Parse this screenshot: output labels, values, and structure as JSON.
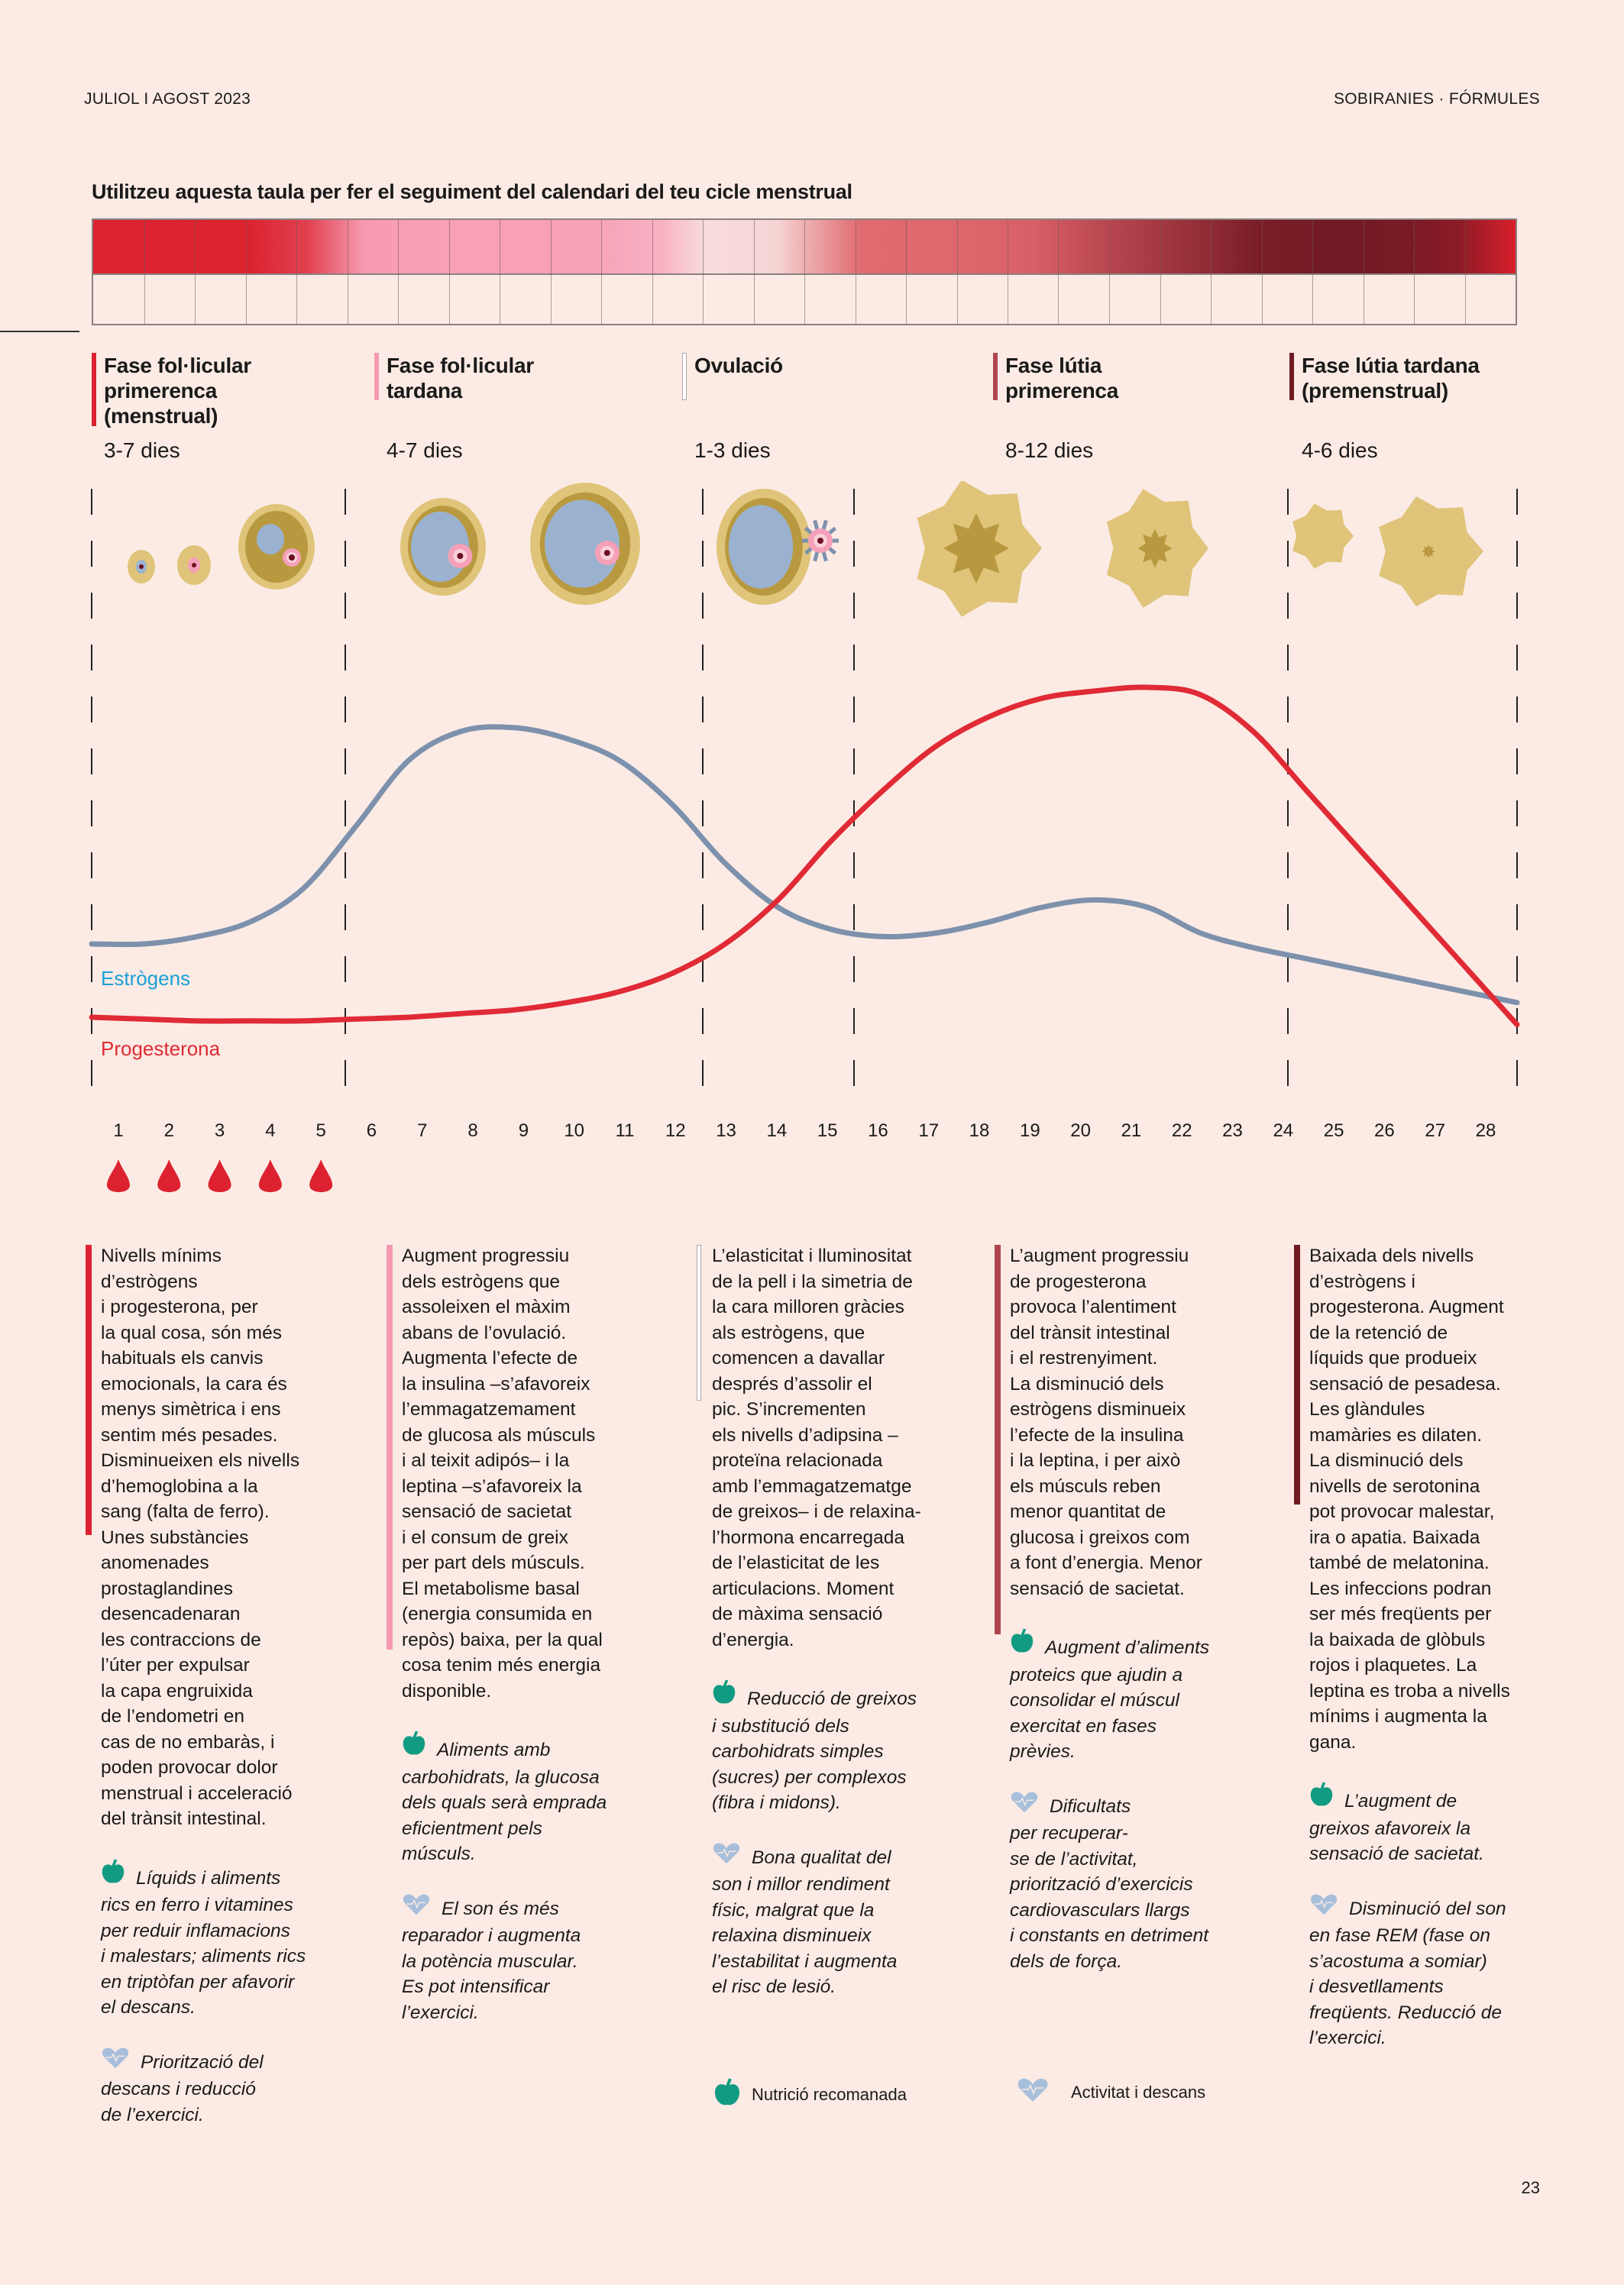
{
  "header": {
    "left": "JULIOL I AGOST 2023",
    "right": "SOBIRANIES · FÓRMULES"
  },
  "title": "Utilitzeu aquesta taula per fer el seguiment del calendari del teu cicle menstrual",
  "calendar": {
    "days": 28,
    "gradient_colors": [
      "#dc2230",
      "#f799ae",
      "#f8dcdc",
      "#de686d",
      "#701a24",
      "#d71f2b"
    ]
  },
  "phases": [
    {
      "name": "Fase fol·licular primerenca (menstrual)",
      "lines": [
        "Fase fol·licular",
        "primerenca",
        "(menstrual)"
      ],
      "days": "3-7 dies",
      "color": "#dc2230"
    },
    {
      "name": "Fase fol·licular tardana",
      "lines": [
        "Fase fol·licular",
        "tardana"
      ],
      "days": "4-7 dies",
      "color": "#f49ab0"
    },
    {
      "name": "Ovulació",
      "lines": [
        "Ovulació"
      ],
      "days": "1-3 dies",
      "color": "#ffffff"
    },
    {
      "name": "Fase lútia primerenca",
      "lines": [
        "Fase lútia",
        "primerenca"
      ],
      "days": "8-12 dies",
      "color": "#b04550"
    },
    {
      "name": "Fase lútia tardana (premenstrual)",
      "lines": [
        "Fase lútia tardana",
        "(premenstrual)"
      ],
      "days": "4-6 dies",
      "color": "#701a24"
    }
  ],
  "follicle_icons": [
    "follicle-primordial",
    "follicle-primary",
    "follicle-secondary",
    "follicle-antral",
    "follicle-graafian",
    "follicle-ovulating",
    "corpus-luteum-large",
    "corpus-luteum-medium",
    "corpus-luteum-small",
    "corpus-albicans"
  ],
  "chart_data": {
    "type": "line",
    "title": "",
    "xlabel": "",
    "ylabel": "",
    "x": [
      1,
      2,
      3,
      4,
      5,
      6,
      7,
      8,
      9,
      10,
      11,
      12,
      13,
      14,
      15,
      16,
      17,
      18,
      19,
      20,
      21,
      22,
      23,
      24,
      25,
      26,
      27,
      28
    ],
    "xlim": [
      1,
      28
    ],
    "ylim": [
      0,
      100
    ],
    "grid": false,
    "legend": "left",
    "series": [
      {
        "name": "Estrògens",
        "color": "#7d91ad",
        "label_color": "#1aa0d8",
        "values": [
          30,
          30,
          32,
          36,
          45,
          62,
          80,
          88,
          89,
          86,
          80,
          68,
          52,
          40,
          34,
          32,
          33,
          36,
          40,
          42,
          40,
          33,
          29,
          26,
          23,
          20,
          17,
          14
        ]
      },
      {
        "name": "Progesterona",
        "color": "#e02a35",
        "label_color": "#e02a35",
        "values": [
          10,
          9.5,
          9,
          9,
          9,
          9.5,
          10,
          11,
          12,
          14,
          17,
          22,
          30,
          42,
          58,
          72,
          84,
          92,
          97,
          99,
          100,
          98,
          88,
          72,
          56,
          40,
          24,
          8
        ]
      }
    ],
    "menstruation_days": [
      1,
      2,
      3,
      4,
      5
    ],
    "phase_boundaries_after_day": [
      5.5,
      12.5,
      15.5,
      23.5
    ]
  },
  "columns": [
    {
      "body": [
        "Nivells mínims",
        "d’estrògens",
        "i progesterona, per",
        "la qual cosa, són més",
        "habituals els canvis",
        "emocionals, la cara és",
        "menys simètrica i ens",
        "sentim més pesades.",
        "Disminueixen els nivells",
        "d’hemoglobina a la",
        "sang (falta de ferro).",
        "Unes substàncies",
        "anomenades",
        "prostaglandines",
        "desencadenaran",
        "les contraccions de",
        "l’úter per expulsar",
        "la capa engruixida",
        "de l’endometri en",
        "cas de no embaràs, i",
        "poden provocar dolor",
        "menstrual i acceleració",
        "del trànsit intestinal."
      ],
      "nutrition": [
        "Líquids i aliments",
        "rics en ferro i vitamines",
        "per reduir inflamacions",
        "i malestars; aliments rics",
        "en triptòfan per afavorir",
        "el descans."
      ],
      "activity": [
        "Priorització del",
        "descans i reducció",
        "de l’exercici."
      ]
    },
    {
      "body": [
        "Augment progressiu",
        "dels estrògens que",
        "assoleixen el màxim",
        "abans de l’ovulació.",
        "Augmenta l’efecte de",
        "la insulina –s’afavoreix",
        "l’emmagatzemament",
        "de glucosa als músculs",
        "i al teixit adipós– i la",
        "leptina –s’afavoreix la",
        "sensació de sacietat",
        "i el consum de greix",
        "per part dels músculs.",
        "El metabolisme basal",
        "(energia consumida en",
        "repòs) baixa, per la qual",
        "cosa tenim més energia",
        "disponible."
      ],
      "nutrition": [
        "Aliments amb",
        "carbohidrats, la glucosa",
        "dels quals serà emprada",
        "eficientment pels",
        "músculs."
      ],
      "activity": [
        "El son és més",
        "reparador i augmenta",
        "la potència muscular.",
        "Es pot intensificar",
        "l’exercici."
      ]
    },
    {
      "body": [
        "L’elasticitat i lluminositat",
        "de la pell i la simetria de",
        "la cara milloren gràcies",
        "als estrògens, que",
        "comencen a davallar",
        "després d’assolir el",
        "pic. S’incrementen",
        "els nivells d’adipsina –",
        "proteïna relacionada",
        "amb l’emmagatzematge",
        "de greixos– i de relaxina-",
        "l’hormona encarregada",
        "de l’elasticitat de les",
        "articulacions. Moment",
        "de màxima sensació",
        "d’energia."
      ],
      "nutrition": [
        "Reducció de greixos",
        "i substitució dels",
        "carbohidrats simples",
        "(sucres) per complexos",
        "(fibra i midons)."
      ],
      "activity": [
        "Bona qualitat del",
        "son i millor rendiment",
        "físic, malgrat que la",
        "relaxina disminueix",
        "l’estabilitat i augmenta",
        "el risc de lesió."
      ]
    },
    {
      "body": [
        "L’augment progressiu",
        "de progesterona",
        "provoca l’alentiment",
        "del trànsit intestinal",
        "i el restrenyiment.",
        "La disminució dels",
        "estrògens disminueix",
        "l’efecte de la insulina",
        "i la leptina, i per això",
        "els músculs reben",
        "menor quantitat de",
        "glucosa i greixos com",
        "a font d’energia. Menor",
        "sensació de sacietat."
      ],
      "nutrition": [
        "Augment d’aliments",
        "proteics que ajudin a",
        "consolidar el múscul",
        "exercitat en fases",
        "prèvies."
      ],
      "activity": [
        "Dificultats",
        "per recuperar-",
        "se de l’activitat,",
        "priorització d’exercicis",
        "cardiovasculars llargs",
        "i constants en detriment",
        "dels de força."
      ]
    },
    {
      "body": [
        "Baixada dels nivells",
        "d’estrògens i",
        "progesterona. Augment",
        "de la retenció de",
        "líquids que produeix",
        "sensació de pesadesa.",
        "Les glàndules",
        "mamàries es dilaten.",
        "La disminució dels",
        "nivells de serotonina",
        "pot provocar malestar,",
        "ira o apatia. Baixada",
        "també de melatonina.",
        "Les infeccions podran",
        "ser més freqüents per",
        "la baixada de glòbuls",
        "rojos i plaquetes. La",
        "leptina es troba a nivells",
        "mínims i augmenta la",
        "gana."
      ],
      "nutrition": [
        "L’augment de",
        "greixos afavoreix la",
        "sensació de sacietat."
      ],
      "activity": [
        "Disminució del son",
        "en fase REM (fase on",
        "s’acostuma a somiar)",
        "i desvetllaments",
        "freqüents. Reducció de",
        "l’exercici."
      ]
    }
  ],
  "legend": {
    "nutrition_label": "Nutrició recomanada",
    "nutrition_icon": "apple-icon",
    "activity_label": "Activitat i descans",
    "activity_icon": "heartbeat-icon",
    "nutrition_color": "#119b82",
    "activity_color": "#a7bfdb"
  },
  "page_number": "23"
}
